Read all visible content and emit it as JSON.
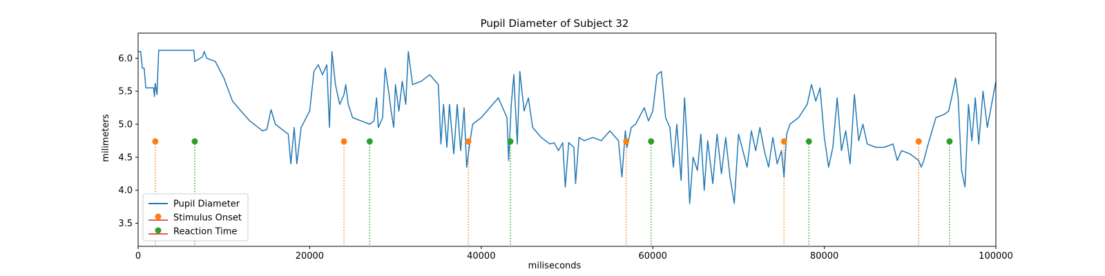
{
  "chart_data": {
    "type": "line",
    "title": "Pupil Diameter of Subject 32",
    "xlabel": "miliseconds",
    "ylabel": "milimeters",
    "xlim": [
      0,
      100000
    ],
    "ylim": [
      3.15,
      6.38
    ],
    "xticks": [
      0,
      20000,
      40000,
      60000,
      80000,
      100000
    ],
    "yticks": [
      3.5,
      4.0,
      4.5,
      5.0,
      5.5,
      6.0
    ],
    "xtick_labels": [
      "0",
      "20000",
      "40000",
      "60000",
      "80000",
      "100000"
    ],
    "ytick_labels": [
      "3.5",
      "4.0",
      "4.5",
      "5.0",
      "5.5",
      "6.0"
    ],
    "grid": false,
    "legend_position": "lower-left",
    "colors": {
      "pupil": "#1f77b4",
      "stimulus": "#ff7f0e",
      "reaction": "#2ca02c",
      "legend_stem": "#d62728"
    },
    "series": [
      {
        "name": "Pupil Diameter",
        "kind": "line",
        "points": [
          [
            0,
            6.1
          ],
          [
            300,
            6.1
          ],
          [
            500,
            5.85
          ],
          [
            700,
            5.85
          ],
          [
            900,
            5.55
          ],
          [
            1800,
            5.55
          ],
          [
            1900,
            5.42
          ],
          [
            2000,
            5.62
          ],
          [
            2200,
            5.45
          ],
          [
            2400,
            6.12
          ],
          [
            6500,
            6.12
          ],
          [
            6600,
            5.95
          ],
          [
            7500,
            6.02
          ],
          [
            7700,
            6.1
          ],
          [
            8000,
            6.0
          ],
          [
            9000,
            5.95
          ],
          [
            10000,
            5.7
          ],
          [
            11000,
            5.35
          ],
          [
            12000,
            5.2
          ],
          [
            13000,
            5.05
          ],
          [
            14000,
            4.95
          ],
          [
            14500,
            4.9
          ],
          [
            15000,
            4.92
          ],
          [
            15500,
            5.22
          ],
          [
            16000,
            5.0
          ],
          [
            17000,
            4.9
          ],
          [
            17500,
            4.85
          ],
          [
            17800,
            4.4
          ],
          [
            18200,
            4.95
          ],
          [
            18500,
            4.4
          ],
          [
            19000,
            4.95
          ],
          [
            20000,
            5.2
          ],
          [
            20500,
            5.8
          ],
          [
            21000,
            5.9
          ],
          [
            21500,
            5.75
          ],
          [
            22000,
            5.9
          ],
          [
            22300,
            4.95
          ],
          [
            22600,
            6.1
          ],
          [
            23000,
            5.6
          ],
          [
            23500,
            5.3
          ],
          [
            24000,
            5.45
          ],
          [
            24200,
            5.6
          ],
          [
            24500,
            5.3
          ],
          [
            25000,
            5.1
          ],
          [
            26000,
            5.05
          ],
          [
            27000,
            5.0
          ],
          [
            27500,
            5.05
          ],
          [
            27800,
            5.4
          ],
          [
            28000,
            4.95
          ],
          [
            28500,
            5.1
          ],
          [
            28800,
            5.85
          ],
          [
            29200,
            5.5
          ],
          [
            29500,
            5.2
          ],
          [
            29800,
            4.95
          ],
          [
            30000,
            5.6
          ],
          [
            30400,
            5.2
          ],
          [
            30800,
            5.65
          ],
          [
            31200,
            5.3
          ],
          [
            31500,
            6.1
          ],
          [
            32000,
            5.6
          ],
          [
            33000,
            5.65
          ],
          [
            34000,
            5.75
          ],
          [
            35000,
            5.6
          ],
          [
            35300,
            4.7
          ],
          [
            35600,
            5.3
          ],
          [
            36000,
            4.65
          ],
          [
            36300,
            5.3
          ],
          [
            36800,
            4.55
          ],
          [
            37200,
            5.3
          ],
          [
            37600,
            4.6
          ],
          [
            38000,
            5.25
          ],
          [
            38300,
            4.35
          ],
          [
            38700,
            4.75
          ],
          [
            39000,
            5.0
          ],
          [
            40000,
            5.1
          ],
          [
            41000,
            5.25
          ],
          [
            42000,
            5.4
          ],
          [
            43000,
            5.1
          ],
          [
            43200,
            4.45
          ],
          [
            43500,
            5.3
          ],
          [
            43800,
            5.75
          ],
          [
            44200,
            4.7
          ],
          [
            44500,
            5.8
          ],
          [
            45000,
            5.2
          ],
          [
            45500,
            5.4
          ],
          [
            46000,
            4.95
          ],
          [
            47000,
            4.8
          ],
          [
            48000,
            4.7
          ],
          [
            48500,
            4.72
          ],
          [
            49000,
            4.6
          ],
          [
            49500,
            4.72
          ],
          [
            49800,
            4.05
          ],
          [
            50200,
            4.72
          ],
          [
            50800,
            4.65
          ],
          [
            51000,
            4.1
          ],
          [
            51400,
            4.8
          ],
          [
            52000,
            4.75
          ],
          [
            53000,
            4.8
          ],
          [
            54000,
            4.75
          ],
          [
            55000,
            4.9
          ],
          [
            56000,
            4.75
          ],
          [
            56400,
            4.2
          ],
          [
            56800,
            4.9
          ],
          [
            57000,
            4.65
          ],
          [
            57500,
            4.95
          ],
          [
            58000,
            5.0
          ],
          [
            59000,
            5.25
          ],
          [
            59500,
            5.05
          ],
          [
            60000,
            5.2
          ],
          [
            60500,
            5.75
          ],
          [
            61000,
            5.8
          ],
          [
            61500,
            5.1
          ],
          [
            62000,
            4.95
          ],
          [
            62400,
            4.35
          ],
          [
            62800,
            5.0
          ],
          [
            63300,
            4.15
          ],
          [
            63700,
            5.4
          ],
          [
            64000,
            4.75
          ],
          [
            64300,
            3.8
          ],
          [
            64700,
            4.5
          ],
          [
            65200,
            4.3
          ],
          [
            65600,
            4.85
          ],
          [
            66000,
            4.0
          ],
          [
            66400,
            4.75
          ],
          [
            67000,
            4.1
          ],
          [
            67500,
            4.85
          ],
          [
            68000,
            4.25
          ],
          [
            68500,
            4.8
          ],
          [
            69000,
            4.2
          ],
          [
            69500,
            3.8
          ],
          [
            70000,
            4.85
          ],
          [
            71000,
            4.35
          ],
          [
            71500,
            4.9
          ],
          [
            72000,
            4.6
          ],
          [
            72500,
            4.95
          ],
          [
            73000,
            4.6
          ],
          [
            73500,
            4.35
          ],
          [
            74000,
            4.8
          ],
          [
            74500,
            4.4
          ],
          [
            75000,
            4.6
          ],
          [
            75300,
            4.2
          ],
          [
            75600,
            4.85
          ],
          [
            76000,
            5.0
          ],
          [
            77000,
            5.1
          ],
          [
            78000,
            5.3
          ],
          [
            78500,
            5.6
          ],
          [
            79000,
            5.35
          ],
          [
            79500,
            5.55
          ],
          [
            80000,
            4.8
          ],
          [
            80500,
            4.35
          ],
          [
            81000,
            4.65
          ],
          [
            81500,
            5.4
          ],
          [
            82000,
            4.6
          ],
          [
            82500,
            4.9
          ],
          [
            83000,
            4.4
          ],
          [
            83500,
            5.45
          ],
          [
            84000,
            4.75
          ],
          [
            84500,
            5.0
          ],
          [
            85000,
            4.7
          ],
          [
            86000,
            4.65
          ],
          [
            87000,
            4.65
          ],
          [
            88000,
            4.7
          ],
          [
            88500,
            4.45
          ],
          [
            89000,
            4.6
          ],
          [
            90000,
            4.55
          ],
          [
            91000,
            4.45
          ],
          [
            91300,
            4.35
          ],
          [
            91600,
            4.45
          ],
          [
            92000,
            4.65
          ],
          [
            93000,
            5.1
          ],
          [
            94000,
            5.15
          ],
          [
            94500,
            5.2
          ],
          [
            95000,
            5.5
          ],
          [
            95300,
            5.7
          ],
          [
            95600,
            5.4
          ],
          [
            96000,
            4.3
          ],
          [
            96400,
            4.05
          ],
          [
            96800,
            5.3
          ],
          [
            97200,
            4.75
          ],
          [
            97600,
            5.4
          ],
          [
            98000,
            4.7
          ],
          [
            98500,
            5.5
          ],
          [
            99000,
            4.95
          ],
          [
            99500,
            5.3
          ],
          [
            100000,
            5.65
          ]
        ]
      },
      {
        "name": "Stimulus Onset",
        "kind": "stem",
        "y": 4.74,
        "x": [
          2000,
          24000,
          38500,
          56900,
          75300,
          91000
        ]
      },
      {
        "name": "Reaction Time",
        "kind": "stem",
        "y": 4.74,
        "x": [
          6600,
          27000,
          43400,
          59800,
          78200,
          94600
        ]
      }
    ]
  }
}
